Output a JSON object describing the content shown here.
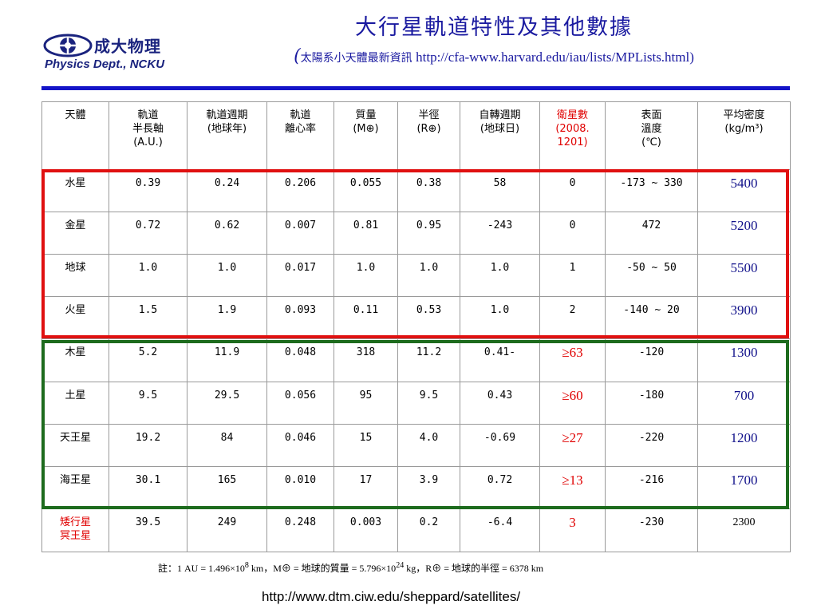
{
  "logo": {
    "name_cn": "成大物理",
    "name_en": "Physics Dept., NCKU",
    "icon": "eye-logo-icon"
  },
  "title": "大行星軌道特性及其他數據",
  "subtitle": {
    "open_paren": "(",
    "text": "太陽系小天體最新資訊 ",
    "url": "http://cfa-www.harvard.edu/iau/lists/MPLists.html",
    "close_paren": ")"
  },
  "table": {
    "headers": [
      "天體",
      "軌道\n半長軸\n(A.U.)",
      "軌道週期\n(地球年)",
      "軌道\n離心率",
      "質量\n(M⊕)",
      "半徑\n(R⊕)",
      "自轉週期\n(地球日)",
      "衛星數\n(2008.\n1201)",
      "表面\n溫度\n(℃)",
      "平均密度\n(kg/m³)"
    ],
    "rows": [
      [
        "水星",
        "0.39",
        "0.24",
        "0.206",
        "0.055",
        "0.38",
        "58",
        "0",
        "-173 ~ 330",
        "5400"
      ],
      [
        "金星",
        "0.72",
        "0.62",
        "0.007",
        "0.81",
        "0.95",
        "-243",
        "0",
        "472",
        "5200"
      ],
      [
        "地球",
        "1.0",
        "1.0",
        "0.017",
        "1.0",
        "1.0",
        "1.0",
        "1",
        "-50 ~ 50",
        "5500"
      ],
      [
        "火星",
        "1.5",
        "1.9",
        "0.093",
        "0.11",
        "0.53",
        "1.0",
        "2",
        "-140 ~ 20",
        "3900"
      ],
      [
        "木星",
        "5.2",
        "11.9",
        "0.048",
        "318",
        "11.2",
        "0.41-",
        "≥63",
        "-120",
        "1300"
      ],
      [
        "土星",
        "9.5",
        "29.5",
        "0.056",
        "95",
        "9.5",
        "0.43",
        "≥60",
        "-180",
        "700"
      ],
      [
        "天王星",
        "19.2",
        "84",
        "0.046",
        "15",
        "4.0",
        "-0.69",
        "≥27",
        "-220",
        "1200"
      ],
      [
        "海王星",
        "30.1",
        "165",
        "0.010",
        "17",
        "3.9",
        "0.72",
        "≥13",
        "-216",
        "1700"
      ],
      [
        "矮行星\n冥王星",
        "39.5",
        "249",
        "0.248",
        "0.003",
        "0.2",
        "-6.4",
        "3",
        "-230",
        "2300"
      ]
    ]
  },
  "note": {
    "prefix": "註：1 AU = 1.496×10",
    "exp1": "8",
    "mid1": " km，M⊕ = 地球的質量 =  5.796×10",
    "exp2": "24",
    "mid2": " kg，R⊕ = 地球的半徑 = 6378 km"
  },
  "footer_url": "http://www.dtm.ciw.edu/sheppard/satellites/",
  "colors": {
    "title_blue": "#1a1aa0",
    "rule_blue": "#1414c8",
    "terrestrial_box": "#e01010",
    "jovian_box": "#1d6b1d",
    "density_blue": "#10108a",
    "highlight_red": "#e00000"
  }
}
